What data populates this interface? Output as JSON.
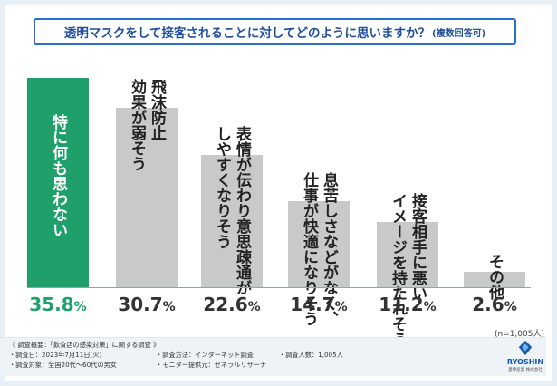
{
  "title": {
    "question": "透明マスクをして接客されることに対してどのように思いますか？",
    "note": "(複数回答可)"
  },
  "colors": {
    "highlight_bar": "#1fa06a",
    "bar": "#c9c9c9",
    "highlight_value": "#1fa06a",
    "title_border": "#2a6fd0"
  },
  "chart_data": {
    "type": "bar",
    "categories": [
      "特に何も思わない",
      "飛沫防止効果が弱そう",
      "表情が伝わり意思疎通がしやすくなりそう",
      "息苦しさなどがなく、仕事が快適になりそう",
      "イメージを持たれそう接客相手に悪い",
      "その他"
    ],
    "category_lines": [
      [
        "特に何も思わない"
      ],
      [
        "飛沫防止",
        "効果が弱そう"
      ],
      [
        "表情が伝わり意思疎通が",
        "しやすくなりそう"
      ],
      [
        "息苦しさなどがなく、",
        "仕事が快適になりそう"
      ],
      [
        "接客相手に悪い",
        "イメージを持たれそう"
      ],
      [
        "その他"
      ]
    ],
    "values": [
      35.8,
      30.7,
      22.6,
      14.7,
      11.2,
      2.6
    ],
    "value_labels": [
      "35.8",
      "30.7",
      "22.6",
      "14.7",
      "11.2",
      "2.6"
    ],
    "unit": "%",
    "ylim": [
      0,
      36
    ],
    "highlight_index": 0,
    "sample_note": "(n=1,005人)"
  },
  "survey": {
    "overview": "《 調査概要：「飲食店の感染対策」に関する調査 》",
    "date": "・調査日：2023年7月11日(火)",
    "method": "・調査方法：インターネット調査",
    "count": "・調査人数：1,005人",
    "target": "・調査対象：全国20代～60代の男女",
    "provider": "・モニター提供元：ゼネラルリサーチ"
  },
  "logo": {
    "name": "RYOSHIN",
    "sub": "菱伸産業 株式会社"
  }
}
